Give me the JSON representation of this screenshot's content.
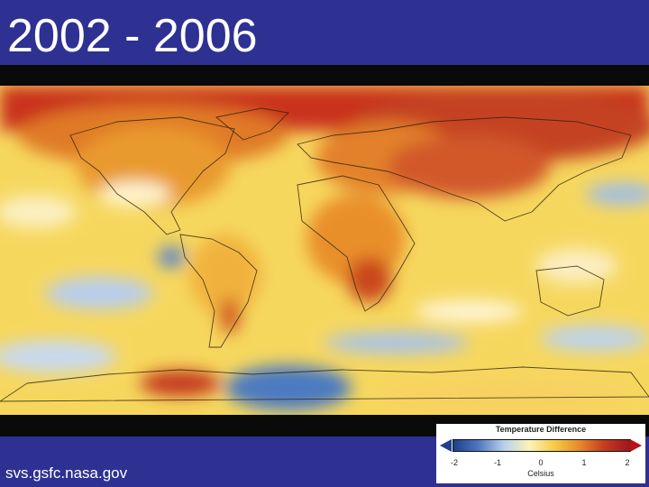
{
  "title": "2002 - 2006",
  "source": "svs.gsfc.nasa.gov",
  "legend": {
    "title": "Temperature Difference",
    "ticks": [
      "-2",
      "-1",
      "0",
      "1",
      "2"
    ],
    "unit": "Celsius",
    "colors": [
      "#1e3f8c",
      "#4f78c0",
      "#b8d0ec",
      "#fbf3b6",
      "#f7cb45",
      "#e8892a",
      "#c53a1f",
      "#a0151c"
    ]
  },
  "map": {
    "description_colors": {
      "ocean_base": "#f3c640",
      "warm": "#c9471e",
      "cool": "#7fa6dc"
    }
  }
}
